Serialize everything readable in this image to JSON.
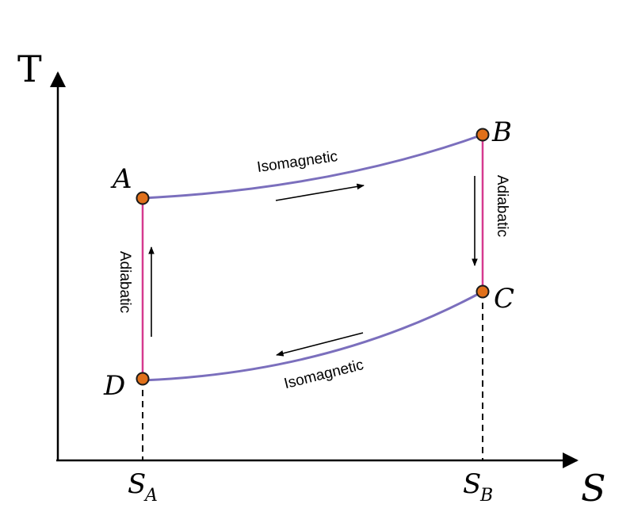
{
  "axes": {
    "y_label": "T",
    "x_label": "S"
  },
  "points": {
    "A": "A",
    "B": "B",
    "C": "C",
    "D": "D"
  },
  "x_ticks": {
    "s_a_base": "S",
    "s_a_sub": "A",
    "s_b_base": "S",
    "s_b_sub": "B"
  },
  "process_labels": {
    "top": "Isomagnetic",
    "bottom": "Isomagnetic",
    "left": "Adiabatic",
    "right": "Adiabatic"
  },
  "colors": {
    "isomagnetic_curve": "#7b6fbd",
    "adiabatic_line": "#d63a8f",
    "point_fill": "#e0701a",
    "point_stroke": "#1a1a1a",
    "axis": "#000000"
  }
}
